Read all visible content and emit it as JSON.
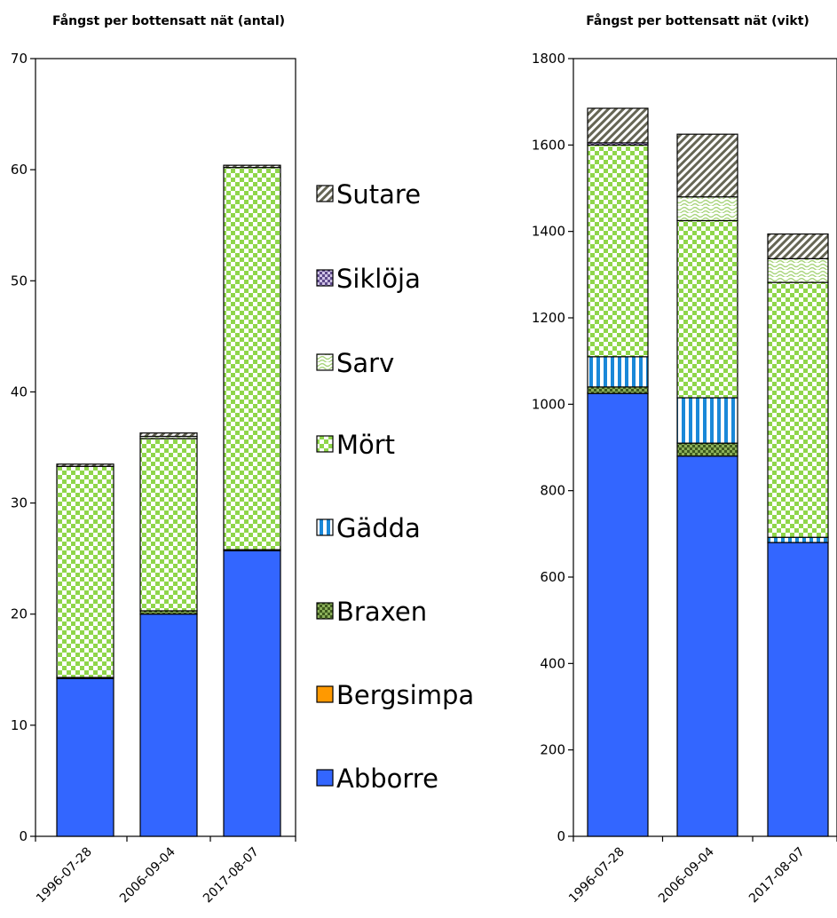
{
  "species": [
    "Abborre",
    "Bergsimpa",
    "Braxen",
    "Gädda",
    "Mört",
    "Sarv",
    "Siklöja",
    "Sutare"
  ],
  "legend_order": [
    "Sutare",
    "Siklöja",
    "Sarv",
    "Mört",
    "Gädda",
    "Braxen",
    "Bergsimpa",
    "Abborre"
  ],
  "colors": {
    "Abborre": "#3366ff",
    "Bergsimpa": "#ff9900",
    "Braxen": "#55702a",
    "Gädda": "#1a88d8",
    "Mört": "#8fd64a",
    "Sarv": "#b7e08a",
    "Siklöja": "#7a62a8",
    "Sutare": "#555544"
  },
  "chart_data": [
    {
      "type": "bar",
      "stacked": true,
      "title": "Fångst per bottensatt nät (antal)",
      "categories": [
        "1996-07-28",
        "2006-09-04",
        "2017-08-07"
      ],
      "ylim": [
        0,
        70
      ],
      "yticks": [
        0,
        10,
        20,
        30,
        40,
        50,
        60,
        70
      ],
      "series": [
        {
          "name": "Abborre",
          "values": [
            14.2,
            20.0,
            25.7
          ]
        },
        {
          "name": "Bergsimpa",
          "values": [
            0,
            0,
            0
          ]
        },
        {
          "name": "Braxen",
          "values": [
            0.1,
            0.3,
            0.1
          ]
        },
        {
          "name": "Gädda",
          "values": [
            0,
            0,
            0
          ]
        },
        {
          "name": "Mört",
          "values": [
            19.0,
            15.5,
            34.4
          ]
        },
        {
          "name": "Sarv",
          "values": [
            0,
            0.2,
            0
          ]
        },
        {
          "name": "Siklöja",
          "values": [
            0,
            0,
            0
          ]
        },
        {
          "name": "Sutare",
          "values": [
            0.2,
            0.3,
            0.2
          ]
        }
      ]
    },
    {
      "type": "bar",
      "stacked": true,
      "title": "Fångst per bottensatt nät (vikt)",
      "categories": [
        "1996-07-28",
        "2006-09-04",
        "2017-08-07"
      ],
      "ylim": [
        0,
        1800
      ],
      "yticks": [
        0,
        200,
        400,
        600,
        800,
        1000,
        1200,
        1400,
        1600,
        1800
      ],
      "series": [
        {
          "name": "Abborre",
          "values": [
            1025,
            880,
            680
          ]
        },
        {
          "name": "Bergsimpa",
          "values": [
            0,
            0,
            0
          ]
        },
        {
          "name": "Braxen",
          "values": [
            15,
            30,
            0
          ]
        },
        {
          "name": "Gädda",
          "values": [
            70,
            105,
            12
          ]
        },
        {
          "name": "Mört",
          "values": [
            490,
            410,
            590
          ]
        },
        {
          "name": "Sarv",
          "values": [
            0,
            55,
            55
          ]
        },
        {
          "name": "Siklöja",
          "values": [
            5,
            0,
            0
          ]
        },
        {
          "name": "Sutare",
          "values": [
            80,
            145,
            57
          ]
        }
      ]
    }
  ]
}
